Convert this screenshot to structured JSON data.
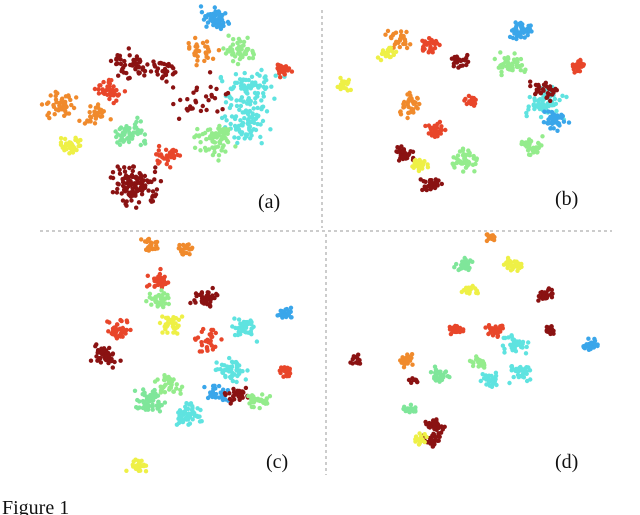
{
  "figure": {
    "panels": [
      {
        "label": "(a)"
      },
      {
        "label": "(b)"
      },
      {
        "label": "(c)"
      },
      {
        "label": "(d)"
      }
    ],
    "caption": "Figure 1"
  }
}
